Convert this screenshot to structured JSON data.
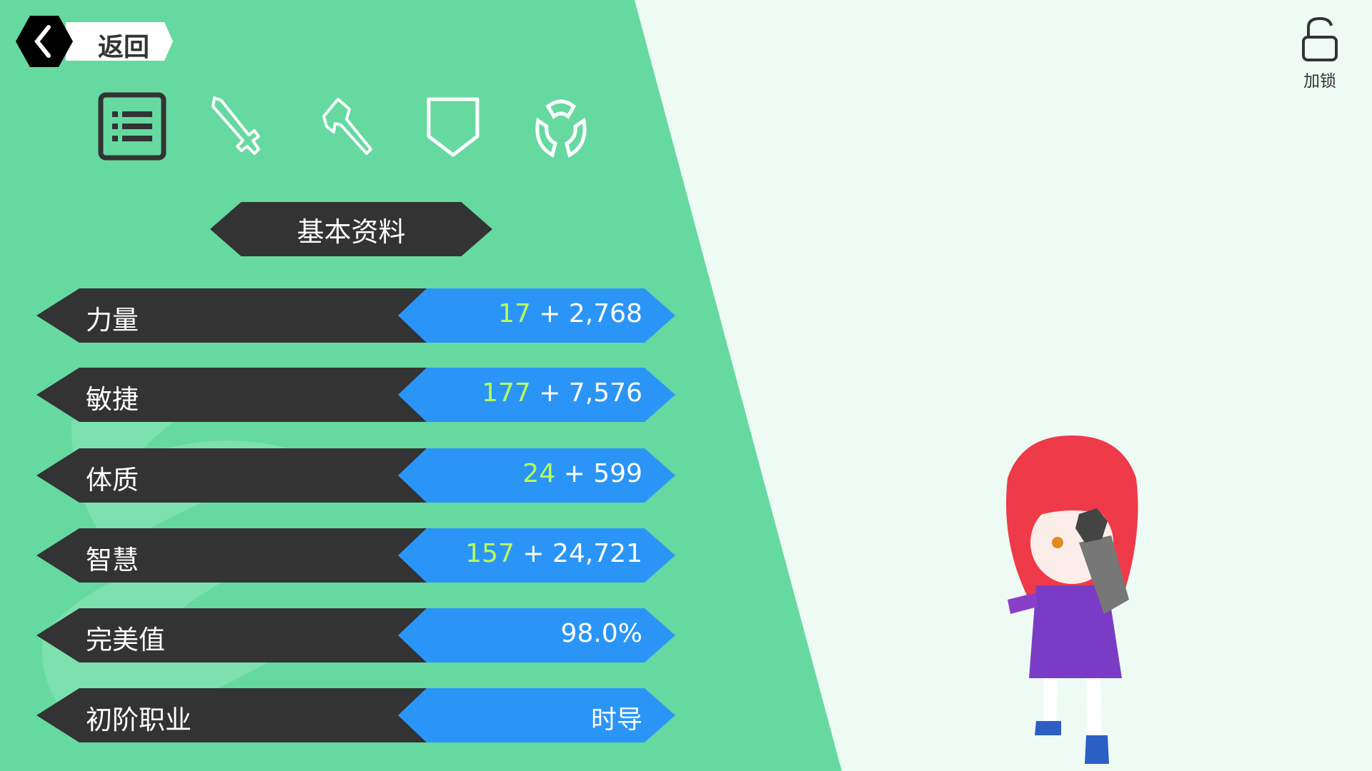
{
  "back_button": {
    "label": "返回",
    "icon": "chevron-left-icon"
  },
  "tabs": [
    {
      "name": "info",
      "icon": "list-icon",
      "active": true
    },
    {
      "name": "weapon",
      "icon": "sword-icon",
      "active": false
    },
    {
      "name": "tool",
      "icon": "pickaxe-icon",
      "active": false
    },
    {
      "name": "armor",
      "icon": "shield-icon",
      "active": false
    },
    {
      "name": "accessory",
      "icon": "ring-icon",
      "active": false
    }
  ],
  "section_title": "基本资料",
  "stats": [
    {
      "label": "力量",
      "base": "17",
      "bonus": " + 2,768"
    },
    {
      "label": "敏捷",
      "base": "177",
      "bonus": " + 7,576"
    },
    {
      "label": "体质",
      "base": "24",
      "bonus": " + 599"
    },
    {
      "label": "智慧",
      "base": "157",
      "bonus": " + 24,721"
    },
    {
      "label": "完美值",
      "base": "",
      "bonus": "98.0%"
    },
    {
      "label": "初阶职业",
      "base": "",
      "bonus": "时导"
    }
  ],
  "lock": {
    "label": "加锁",
    "icon": "unlock-icon",
    "locked": false
  },
  "colors": {
    "panel": "#66d9a0",
    "background": "#eefbf5",
    "dark": "#333333",
    "value_bar": "#2b95f7",
    "base_value": "#b9ff5a"
  }
}
